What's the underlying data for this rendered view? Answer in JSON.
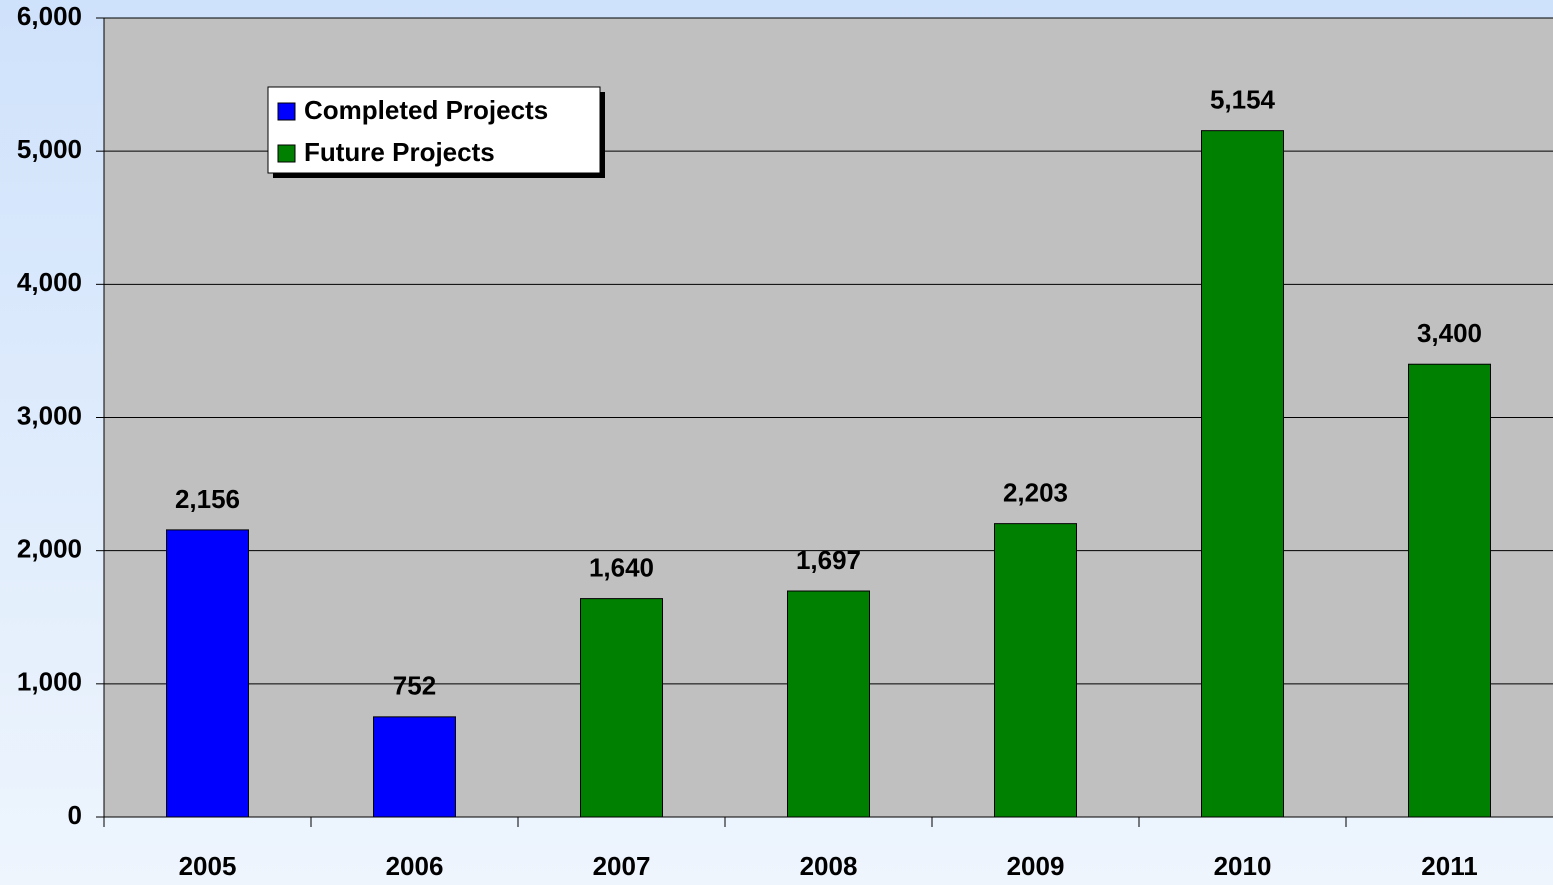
{
  "chart_data": {
    "type": "bar",
    "categories": [
      "2005",
      "2006",
      "2007",
      "2008",
      "2009",
      "2010",
      "2011"
    ],
    "series": [
      {
        "name": "Completed Projects",
        "color": "#0000ff",
        "values": [
          2156,
          752,
          null,
          null,
          null,
          null,
          null
        ],
        "value_labels": [
          "2,156",
          "752",
          null,
          null,
          null,
          null,
          null
        ]
      },
      {
        "name": "Future Projects",
        "color": "#008000",
        "values": [
          null,
          null,
          1640,
          1697,
          2203,
          5154,
          3400
        ],
        "value_labels": [
          null,
          null,
          "1,640",
          "1,697",
          "2,203",
          "5,154",
          "3,400"
        ]
      }
    ],
    "ylim": [
      0,
      6000
    ],
    "yticks": [
      0,
      {
        "value": 1000,
        "label": "1,000"
      },
      {
        "value": 2000,
        "label": "2,000"
      },
      {
        "value": 3000,
        "label": "3,000"
      },
      {
        "value": 4000,
        "label": "4,000"
      },
      {
        "value": 5000,
        "label": "5,000"
      },
      {
        "value": 6000,
        "label": "6,000"
      }
    ],
    "grid": true,
    "legend": "upper left"
  }
}
